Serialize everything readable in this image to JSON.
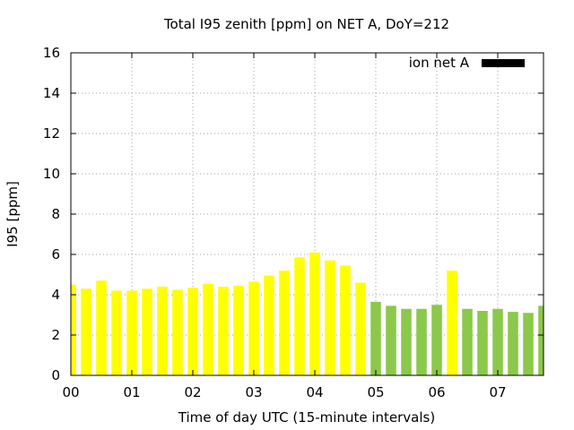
{
  "chart_data": {
    "type": "bar",
    "title": "Total I95 zenith [ppm] on NET A, DoY=212",
    "xlabel": "Time of day UTC (15-minute intervals)",
    "ylabel": "I95 [ppm]",
    "ylim": [
      0,
      16
    ],
    "yticks": [
      0,
      2,
      4,
      6,
      8,
      10,
      12,
      14,
      16
    ],
    "xlim": [
      0,
      7.75
    ],
    "xticks": [
      {
        "v": 0,
        "label": "00"
      },
      {
        "v": 1,
        "label": "01"
      },
      {
        "v": 2,
        "label": "02"
      },
      {
        "v": 3,
        "label": "03"
      },
      {
        "v": 4,
        "label": "04"
      },
      {
        "v": 5,
        "label": "05"
      },
      {
        "v": 6,
        "label": "06"
      },
      {
        "v": 7,
        "label": "07"
      }
    ],
    "grid": true,
    "legend": {
      "label": "ion net A",
      "position": "top-right",
      "color": "#000000"
    },
    "colors": {
      "yellow": "#ffff00",
      "green": "#8cc84b"
    },
    "bar_width_hours": 0.16,
    "series": [
      {
        "x": [
          0,
          0.25,
          0.5,
          0.75,
          1.0,
          1.25,
          1.5,
          1.75,
          2.0,
          2.25,
          2.5,
          2.75,
          3.0,
          3.25,
          3.5,
          3.75,
          4.0,
          4.25,
          4.5,
          4.75,
          5.0,
          5.25,
          5.5,
          5.75,
          6.0,
          6.25,
          6.5,
          6.75,
          7.0,
          7.25,
          7.5,
          7.75
        ],
        "values": [
          4.5,
          4.3,
          4.7,
          4.2,
          4.2,
          4.3,
          4.4,
          4.25,
          4.35,
          4.55,
          4.4,
          4.45,
          4.65,
          4.95,
          5.2,
          5.85,
          6.1,
          5.7,
          5.45,
          4.6,
          3.65,
          3.45,
          3.3,
          3.3,
          3.5,
          5.2,
          3.3,
          3.2,
          3.3,
          3.15,
          3.1,
          3.45
        ],
        "colors": [
          "yellow",
          "yellow",
          "yellow",
          "yellow",
          "yellow",
          "yellow",
          "yellow",
          "yellow",
          "yellow",
          "yellow",
          "yellow",
          "yellow",
          "yellow",
          "yellow",
          "yellow",
          "yellow",
          "yellow",
          "yellow",
          "yellow",
          "yellow",
          "green",
          "green",
          "green",
          "green",
          "green",
          "yellow",
          "green",
          "green",
          "green",
          "green",
          "green",
          "green"
        ]
      }
    ]
  }
}
